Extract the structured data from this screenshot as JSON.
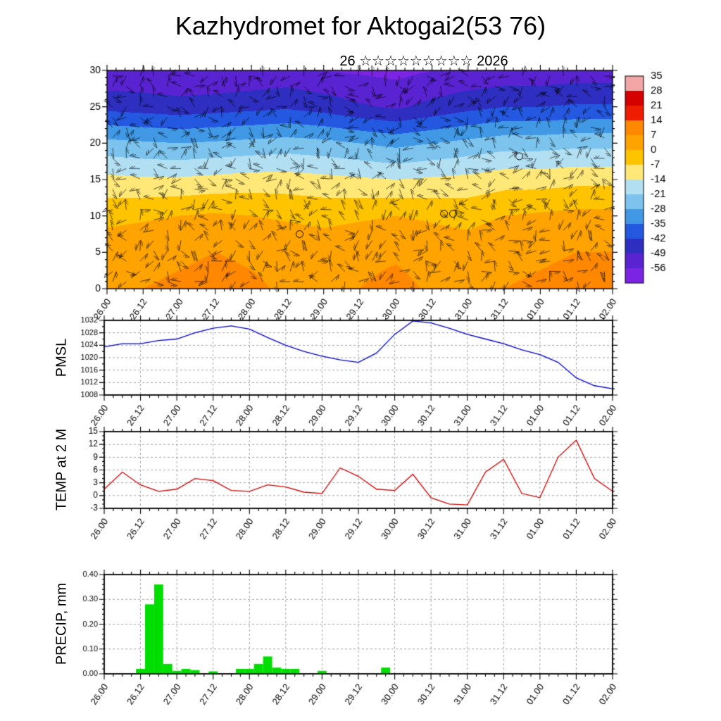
{
  "page": {
    "title": "Kazhydromet for Aktogai2(53 76)",
    "subtitle": "26 ☆☆☆☆☆☆☆☆☆ 2026"
  },
  "time_axis": {
    "labels": [
      "26.00",
      "26.12",
      "27.00",
      "27.12",
      "28.00",
      "28.12",
      "29.00",
      "29.12",
      "30.00",
      "30.12",
      "31.00",
      "31.12",
      "01.00",
      "01.12",
      "02.00"
    ],
    "span_hours": 168,
    "major_step_hours": 12,
    "minor_step_hours": 3
  },
  "chart_data": [
    {
      "id": "cross_section",
      "type": "heatmap",
      "label": "",
      "ylim": [
        0,
        30
      ],
      "yticks": [
        30,
        25,
        20,
        15,
        10,
        5,
        0
      ],
      "ytick_labels": [
        "30",
        "25",
        "20",
        "15",
        "10",
        "5",
        "0"
      ],
      "levels": [
        0,
        5,
        10,
        15,
        20,
        25,
        30
      ],
      "times_step_hours": 12,
      "grid": [
        [
          6,
          7,
          8,
          9,
          8,
          6,
          5,
          7,
          9,
          6,
          5,
          7,
          8,
          9,
          9
        ],
        [
          4,
          5,
          6,
          7,
          6,
          5,
          4,
          5,
          6,
          4,
          3,
          5,
          6,
          7,
          7
        ],
        [
          -2,
          -1,
          0,
          1,
          0,
          -1,
          -2,
          -1,
          0,
          -1,
          -2,
          0,
          1,
          2,
          2
        ],
        [
          -12,
          -13,
          -13,
          -12,
          -11,
          -11,
          -12,
          -13,
          -14,
          -13,
          -12,
          -10,
          -10,
          -9,
          -9
        ],
        [
          -26,
          -27,
          -28,
          -27,
          -26,
          -25,
          -26,
          -28,
          -30,
          -28,
          -26,
          -24,
          -24,
          -23,
          -23
        ],
        [
          -44,
          -45,
          -46,
          -45,
          -44,
          -43,
          -45,
          -48,
          -50,
          -47,
          -44,
          -42,
          -42,
          -41,
          -41
        ],
        [
          -55,
          -55,
          -56,
          -56,
          -55,
          -54,
          -56,
          -57,
          -58,
          -56,
          -55,
          -54,
          -54,
          -53,
          -53
        ]
      ],
      "overlay": "wind-barbs",
      "calm_markers": [
        {
          "hour": 64,
          "level": 7.5
        },
        {
          "hour": 112,
          "level": 10.3
        },
        {
          "hour": 115,
          "level": 10.3
        },
        {
          "hour": 137,
          "level": 18.2
        }
      ],
      "colorbar": {
        "ticks": [
          "35",
          "28",
          "21",
          "14",
          "7",
          "0",
          "-7",
          "-14",
          "-21",
          "-28",
          "-35",
          "-42",
          "-49",
          "-56"
        ],
        "tick_values": [
          35,
          28,
          21,
          14,
          7,
          0,
          -7,
          -14,
          -21,
          -28,
          -35,
          -42,
          -49,
          -56
        ],
        "segment_colors": [
          "#f2a6a6",
          "#d40000",
          "#ee1c00",
          "#ff8800",
          "#ffa300",
          "#ffc400",
          "#ffe878",
          "#b2e0f2",
          "#7cc4ee",
          "#4199e6",
          "#2458e0",
          "#2e2ec0",
          "#5a23d2",
          "#7c24e4"
        ]
      }
    },
    {
      "id": "pmsl",
      "type": "line",
      "label": "PMSL",
      "color": "#0000cc",
      "ylim": [
        1008,
        1032
      ],
      "yticks": [
        1032,
        1028,
        1024,
        1020,
        1016,
        1012,
        1008
      ],
      "ytick_labels": [
        "1032",
        "1028",
        "1024",
        "1020",
        "1016",
        "1012",
        "1008"
      ],
      "yminor_step": 2,
      "x_step_hours": 6,
      "values": [
        1023.5,
        1024.5,
        1024.5,
        1025.5,
        1026,
        1028,
        1029.5,
        1030.2,
        1029.2,
        1026.5,
        1024,
        1022,
        1020.5,
        1019.3,
        1018.5,
        1021.5,
        1027.5,
        1031.8,
        1031.2,
        1029.5,
        1027.5,
        1026,
        1024.5,
        1022.5,
        1021,
        1018.5,
        1013.5,
        1011,
        1010
      ]
    },
    {
      "id": "temp2m",
      "type": "line",
      "label": "TEMP at 2 M",
      "color": "#cc0000",
      "ylim": [
        -3,
        15
      ],
      "yticks": [
        15,
        12,
        9,
        6,
        3,
        0,
        -3
      ],
      "ytick_labels": [
        "15",
        "12",
        "9",
        "6",
        "3",
        "0",
        "-3"
      ],
      "yminor_step": 1,
      "x_step_hours": 6,
      "values": [
        1.5,
        5.5,
        2.5,
        1.0,
        1.5,
        4.0,
        3.5,
        1.2,
        1.0,
        2.5,
        2.0,
        0.8,
        0.5,
        6.5,
        4.5,
        1.5,
        1.2,
        5.0,
        -0.5,
        -2.0,
        -2.2,
        5.5,
        8.5,
        0.5,
        -0.5,
        9.0,
        13.0,
        4.0,
        1.0
      ]
    },
    {
      "id": "precip",
      "type": "bar",
      "label": "PRECIP, mm",
      "color": "#00dd00",
      "ylim": [
        0,
        0.4
      ],
      "yticks": [
        0.4,
        0.3,
        0.2,
        0.1,
        0.0
      ],
      "ytick_labels": [
        "0.40",
        "0.30",
        "0.20",
        "0.10",
        "0.00"
      ],
      "yminor_step": 0.02,
      "x_step_hours": 3,
      "values": [
        0,
        0,
        0,
        0,
        0.02,
        0.28,
        0.36,
        0.04,
        0.012,
        0.02,
        0.015,
        0,
        0.01,
        0,
        0,
        0.02,
        0.02,
        0.04,
        0.07,
        0.025,
        0.02,
        0.02,
        0,
        0,
        0.012,
        0,
        0,
        0,
        0,
        0,
        0,
        0.025,
        0,
        0,
        0,
        0,
        0,
        0,
        0,
        0,
        0,
        0,
        0,
        0,
        0,
        0,
        0,
        0,
        0,
        0,
        0,
        0,
        0,
        0,
        0,
        0,
        0
      ]
    }
  ]
}
